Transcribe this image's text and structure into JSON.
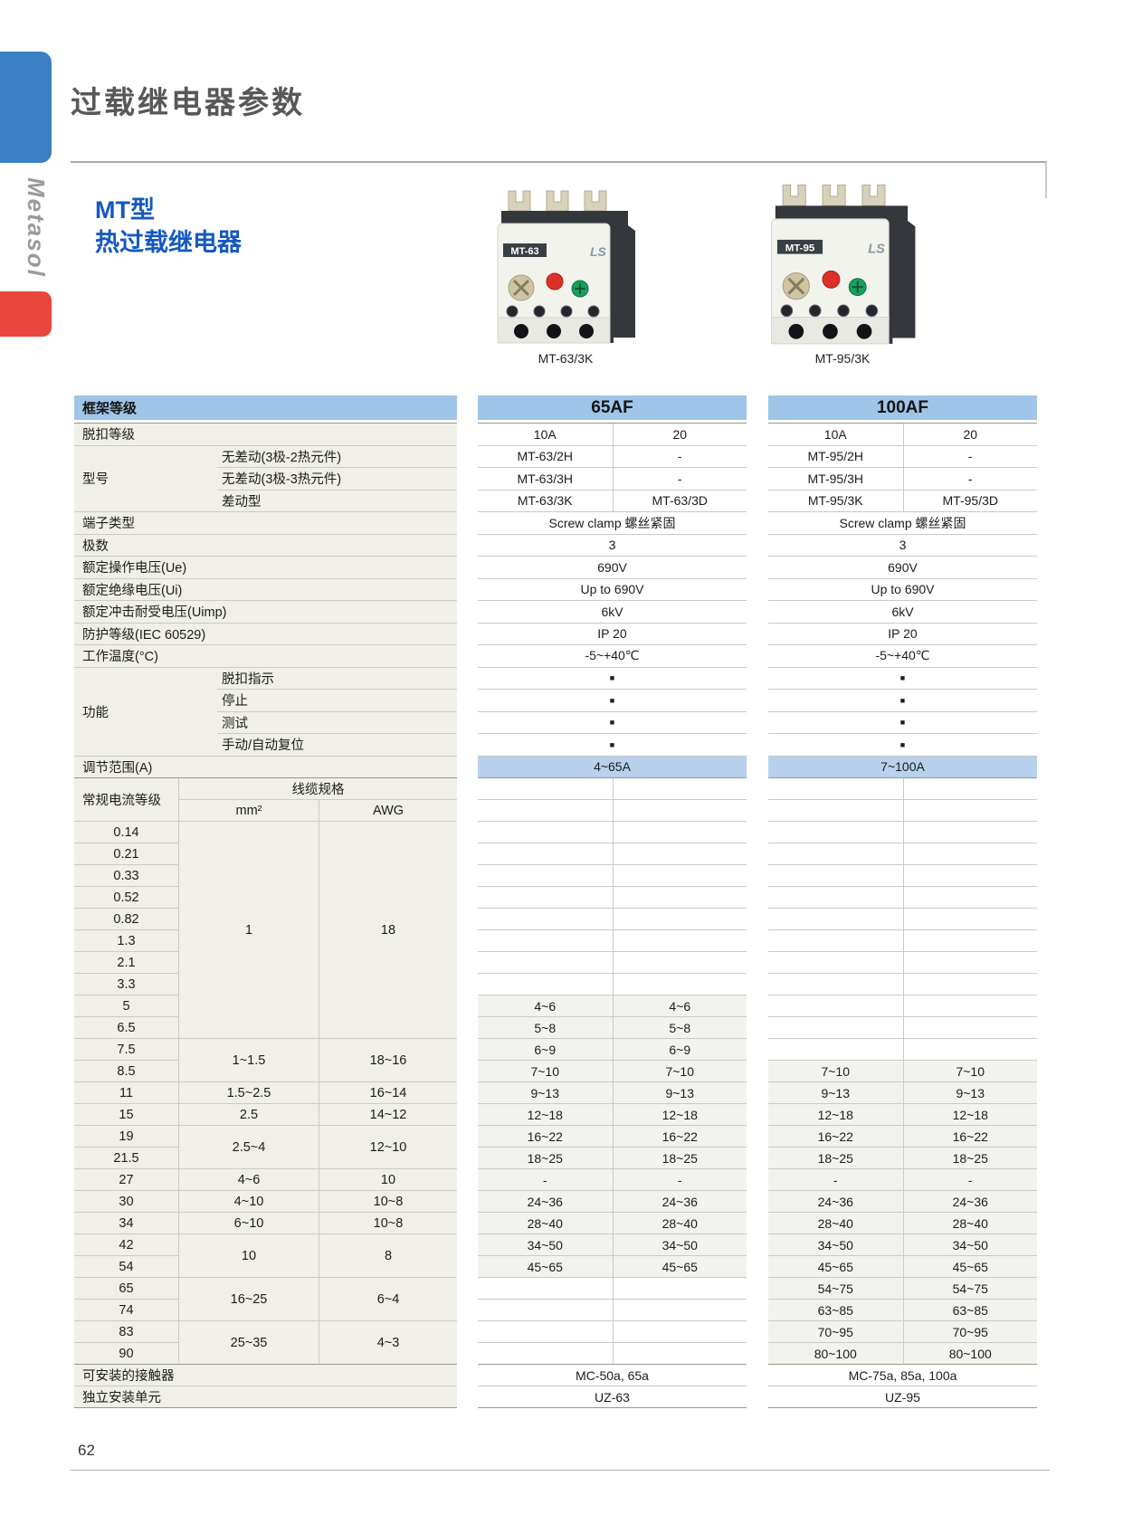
{
  "page": {
    "title": "过载继电器参数",
    "brand": "Metasol",
    "page_number": "62"
  },
  "colors": {
    "accent_blue": "#3a80c4",
    "accent_red": "#e9463e",
    "band_blue": "#9fc5e8",
    "range_blue": "#b7d1ee",
    "label_bg": "#f0efe8",
    "value_bg": "#f2f2ef"
  },
  "product": {
    "title_line1": "MT型",
    "title_line2": "热过载继电器",
    "photos": [
      {
        "badge": "MT-63",
        "logo": "LS",
        "caption": "MT-63/3K"
      },
      {
        "badge": "MT-95",
        "logo": "LS",
        "caption": "MT-95/3K"
      }
    ]
  },
  "frame_header": "框架等级",
  "frames": [
    {
      "name": "65AF"
    },
    {
      "name": "100AF"
    }
  ],
  "spec": {
    "rows": [
      {
        "label": "脱扣等级",
        "v65": [
          "10A",
          "20"
        ],
        "v100": [
          "10A",
          "20"
        ]
      },
      {
        "label": "型号",
        "group": 3,
        "sub": "无差动(3极-2热元件)",
        "v65": [
          "MT-63/2H",
          "-"
        ],
        "v100": [
          "MT-95/2H",
          "-"
        ]
      },
      {
        "sub": "无差动(3极-3热元件)",
        "v65": [
          "MT-63/3H",
          "-"
        ],
        "v100": [
          "MT-95/3H",
          "-"
        ]
      },
      {
        "sub": "差动型",
        "v65": [
          "MT-63/3K",
          "MT-63/3D"
        ],
        "v100": [
          "MT-95/3K",
          "MT-95/3D"
        ]
      },
      {
        "label": "端子类型",
        "v65": "Screw clamp 螺丝紧固",
        "v100": "Screw clamp 螺丝紧固"
      },
      {
        "label": "极数",
        "v65": "3",
        "v100": "3"
      },
      {
        "label": "额定操作电压(Ue)",
        "v65": "690V",
        "v100": "690V"
      },
      {
        "label": "额定绝缘电压(Ui)",
        "v65": "Up to 690V",
        "v100": "Up to 690V"
      },
      {
        "label": "额定冲击耐受电压(Uimp)",
        "v65": "6kV",
        "v100": "6kV"
      },
      {
        "label": "防护等级(IEC 60529)",
        "v65": "IP 20",
        "v100": "IP 20"
      },
      {
        "label": "工作温度(°C)",
        "v65": "-5~+40℃",
        "v100": "-5~+40℃"
      },
      {
        "label": "功能",
        "group": 4,
        "sub": "脱扣指示",
        "v65": "■",
        "v100": "■"
      },
      {
        "sub": "停止",
        "v65": "■",
        "v100": "■"
      },
      {
        "sub": "测试",
        "v65": "■",
        "v100": "■"
      },
      {
        "sub": "手动/自动复位",
        "v65": "■",
        "v100": "■"
      },
      {
        "label": "调节范围(A)",
        "highlight": true,
        "v65": "4~65A",
        "v100": "7~100A"
      }
    ]
  },
  "cable": {
    "col_current": "常规电流等级",
    "col_cable": "线缆规格",
    "col_mm2": "mm²",
    "col_awg": "AWG"
  },
  "current": {
    "rows": [
      {
        "a": "0.14",
        "mm2": "1",
        "mm2_rs": 10,
        "awg": "18",
        "awg_rs": 10,
        "v65": [
          "",
          ""
        ],
        "v100": [
          "",
          ""
        ]
      },
      {
        "a": "0.21",
        "v65": [
          "",
          ""
        ],
        "v100": [
          "",
          ""
        ]
      },
      {
        "a": "0.33",
        "v65": [
          "",
          ""
        ],
        "v100": [
          "",
          ""
        ]
      },
      {
        "a": "0.52",
        "v65": [
          "",
          ""
        ],
        "v100": [
          "",
          ""
        ]
      },
      {
        "a": "0.82",
        "v65": [
          "",
          ""
        ],
        "v100": [
          "",
          ""
        ]
      },
      {
        "a": "1.3",
        "v65": [
          "",
          ""
        ],
        "v100": [
          "",
          ""
        ]
      },
      {
        "a": "2.1",
        "v65": [
          "",
          ""
        ],
        "v100": [
          "",
          ""
        ]
      },
      {
        "a": "3.3",
        "v65": [
          "",
          ""
        ],
        "v100": [
          "",
          ""
        ]
      },
      {
        "a": "5",
        "v65": [
          "4~6",
          "4~6"
        ],
        "v100": [
          "",
          ""
        ]
      },
      {
        "a": "6.5",
        "v65": [
          "5~8",
          "5~8"
        ],
        "v100": [
          "",
          ""
        ]
      },
      {
        "a": "7.5",
        "mm2": "1~1.5",
        "mm2_rs": 2,
        "awg": "18~16",
        "awg_rs": 2,
        "v65": [
          "6~9",
          "6~9"
        ],
        "v100": [
          "",
          ""
        ]
      },
      {
        "a": "8.5",
        "v65": [
          "7~10",
          "7~10"
        ],
        "v100": [
          "7~10",
          "7~10"
        ]
      },
      {
        "a": "11",
        "mm2": "1.5~2.5",
        "mm2_rs": 1,
        "awg": "16~14",
        "awg_rs": 1,
        "v65": [
          "9~13",
          "9~13"
        ],
        "v100": [
          "9~13",
          "9~13"
        ]
      },
      {
        "a": "15",
        "mm2": "2.5",
        "mm2_rs": 1,
        "awg": "14~12",
        "awg_rs": 1,
        "v65": [
          "12~18",
          "12~18"
        ],
        "v100": [
          "12~18",
          "12~18"
        ]
      },
      {
        "a": "19",
        "mm2": "2.5~4",
        "mm2_rs": 2,
        "awg": "12~10",
        "awg_rs": 2,
        "v65": [
          "16~22",
          "16~22"
        ],
        "v100": [
          "16~22",
          "16~22"
        ]
      },
      {
        "a": "21.5",
        "v65": [
          "18~25",
          "18~25"
        ],
        "v100": [
          "18~25",
          "18~25"
        ]
      },
      {
        "a": "27",
        "mm2": "4~6",
        "mm2_rs": 1,
        "awg": "10",
        "awg_rs": 1,
        "v65": [
          "-",
          "-"
        ],
        "v100": [
          "-",
          "-"
        ]
      },
      {
        "a": "30",
        "mm2": "4~10",
        "mm2_rs": 1,
        "awg": "10~8",
        "awg_rs": 1,
        "v65": [
          "24~36",
          "24~36"
        ],
        "v100": [
          "24~36",
          "24~36"
        ]
      },
      {
        "a": "34",
        "mm2": "6~10",
        "mm2_rs": 1,
        "awg": "10~8",
        "awg_rs": 1,
        "v65": [
          "28~40",
          "28~40"
        ],
        "v100": [
          "28~40",
          "28~40"
        ]
      },
      {
        "a": "42",
        "mm2": "10",
        "mm2_rs": 2,
        "awg": "8",
        "awg_rs": 2,
        "v65": [
          "34~50",
          "34~50"
        ],
        "v100": [
          "34~50",
          "34~50"
        ]
      },
      {
        "a": "54",
        "v65": [
          "45~65",
          "45~65"
        ],
        "v100": [
          "45~65",
          "45~65"
        ]
      },
      {
        "a": "65",
        "mm2": "16~25",
        "mm2_rs": 2,
        "awg": "6~4",
        "awg_rs": 2,
        "v65": [
          "",
          ""
        ],
        "v100": [
          "54~75",
          "54~75"
        ]
      },
      {
        "a": "74",
        "v65": [
          "",
          ""
        ],
        "v100": [
          "63~85",
          "63~85"
        ]
      },
      {
        "a": "83",
        "mm2": "25~35",
        "mm2_rs": 2,
        "awg": "4~3",
        "awg_rs": 2,
        "v65": [
          "",
          ""
        ],
        "v100": [
          "70~95",
          "70~95"
        ]
      },
      {
        "a": "90",
        "v65": [
          "",
          ""
        ],
        "v100": [
          "80~100",
          "80~100"
        ]
      }
    ]
  },
  "bottom": {
    "rows": [
      {
        "label": "可安装的接触器",
        "v65": "MC-50a, 65a",
        "v100": "MC-75a, 85a, 100a"
      },
      {
        "label": "独立安装单元",
        "v65": "UZ-63",
        "v100": "UZ-95"
      }
    ]
  }
}
